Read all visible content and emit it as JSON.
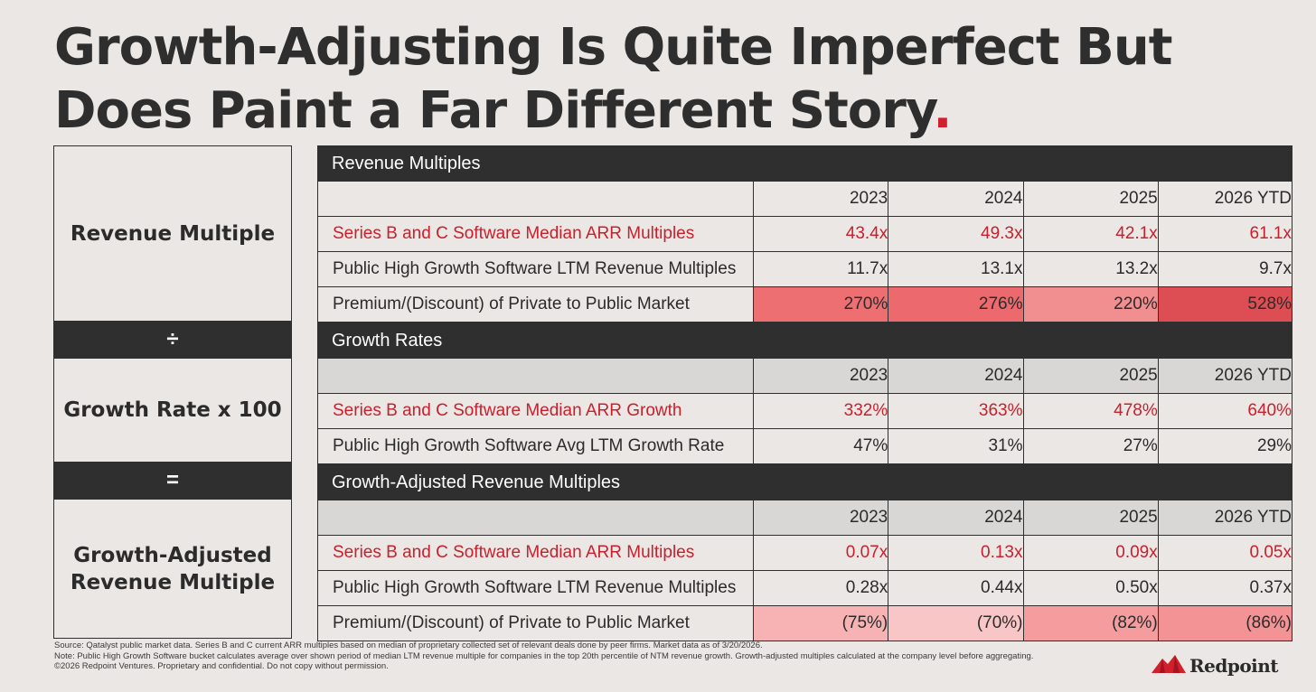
{
  "title": {
    "line1": "Growth-Adjusting Is Quite Imperfect But",
    "line2": "Does Paint a Far Different Story",
    "dot": "."
  },
  "formula": {
    "revenue_multiple": "Revenue Multiple",
    "divide": "÷",
    "growth_rate": "Growth Rate x 100",
    "equals": "=",
    "growth_adjusted_line1": "Growth-Adjusted",
    "growth_adjusted_line2": "Revenue Multiple"
  },
  "colors": {
    "accent_red": "#c8202d",
    "dark_bar": "#2f2f2f",
    "heat_270": "#ee6f72",
    "heat_276": "#ec6a6e",
    "heat_220": "#f18e8f",
    "heat_528": "#dc4e53",
    "heat_75": "#f7b3b4",
    "heat_70": "#f9c6c7",
    "heat_82": "#f59c9e",
    "heat_86": "#f39395"
  },
  "sections": [
    {
      "heading": "Revenue Multiples",
      "years": [
        "2023",
        "2024",
        "2025",
        "2026 YTD"
      ],
      "rows": [
        {
          "label": "Series B and C Software Median ARR Multiples",
          "values": [
            "43.4x",
            "49.3x",
            "42.1x",
            "61.1x"
          ]
        },
        {
          "label": "Public High Growth Software LTM Revenue Multiples",
          "values": [
            "11.7x",
            "13.1x",
            "13.2x",
            "9.7x"
          ]
        },
        {
          "label": "Premium/(Discount) of Private to Public Market",
          "values": [
            "270%",
            "276%",
            "220%",
            "528%"
          ]
        }
      ]
    },
    {
      "heading": "Growth Rates",
      "years": [
        "2023",
        "2024",
        "2025",
        "2026 YTD"
      ],
      "rows": [
        {
          "label": "Series B and C Software Median ARR Growth",
          "values": [
            "332%",
            "363%",
            "478%",
            "640%"
          ]
        },
        {
          "label": "Public High Growth Software Avg LTM Growth Rate",
          "values": [
            "47%",
            "31%",
            "27%",
            "29%"
          ]
        }
      ]
    },
    {
      "heading": "Growth-Adjusted Revenue Multiples",
      "years": [
        "2023",
        "2024",
        "2025",
        "2026 YTD"
      ],
      "rows": [
        {
          "label": "Series B and C Software Median ARR Multiples",
          "values": [
            "0.07x",
            "0.13x",
            "0.09x",
            "0.05x"
          ]
        },
        {
          "label": "Public High Growth Software LTM Revenue Multiples",
          "values": [
            "0.28x",
            "0.44x",
            "0.50x",
            "0.37x"
          ]
        },
        {
          "label": "Premium/(Discount) of Private to Public Market",
          "values": [
            "(75%)",
            "(70%)",
            "(82%)",
            "(86%)"
          ]
        }
      ]
    }
  ],
  "footer": {
    "source": "Source: Qatalyst public market data. Series B and C current ARR multiples based on median of proprietary collected set of relevant deals done by peer firms. Market data as of 3/20/2026.",
    "note": "Note: Public High Growth Software bucket calculates average over shown period of median LTM revenue multiple for companies in the top 20th percentile of NTM revenue growth. Growth-adjusted multiples calculated at the company level before aggregating.",
    "copyright": "©2026 Redpoint Ventures. Proprietary and confidential. Do not copy without permission."
  },
  "logo": {
    "text": "Redpoint",
    "icon": "redpoint-mountain-icon"
  }
}
